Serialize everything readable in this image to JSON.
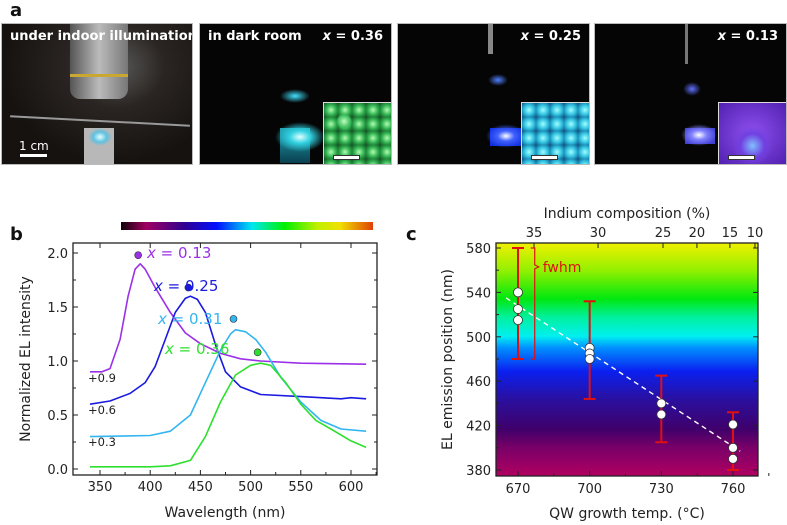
{
  "panel_a": {
    "letter": "a",
    "photos": [
      {
        "label": "under indoor illumination",
        "scale_label": "1 cm"
      },
      {
        "label": "in dark room",
        "composition": "x = 0.36",
        "inset_color": "#30c060"
      },
      {
        "composition": "x = 0.25",
        "inset_color": "#20b8e0"
      },
      {
        "composition": "x = 0.13",
        "inset_color": "#7a30e0"
      }
    ]
  },
  "chart_data": [
    {
      "panel": "b",
      "type": "line",
      "xlabel": "Wavelength (nm)",
      "ylabel": "Normalized EL intensity",
      "xlim": [
        323,
        626
      ],
      "ylim": [
        -0.03,
        2.1
      ],
      "xticks": [
        350,
        400,
        450,
        500,
        550,
        600
      ],
      "yticks": [
        "0.0",
        "0.5",
        "1.0",
        "1.5",
        "2.0"
      ],
      "colorbar": "spectrum",
      "offset_labels": [
        "+0.9",
        "+0.6",
        "+0.3"
      ],
      "series": [
        {
          "name": "x = 0.13",
          "color": "#9b30e8",
          "peak_marker": [
            388,
            1.98
          ],
          "x": [
            340,
            352,
            360,
            370,
            378,
            385,
            390,
            395,
            405,
            420,
            435,
            450,
            470,
            490,
            510,
            550,
            615
          ],
          "y": [
            0.9,
            0.9,
            0.93,
            1.2,
            1.6,
            1.85,
            1.9,
            1.85,
            1.68,
            1.45,
            1.26,
            1.16,
            1.07,
            1.02,
            1.0,
            0.98,
            0.97
          ]
        },
        {
          "name": "x = 0.25",
          "color": "#1a1ae0",
          "peak_marker": [
            438,
            1.68
          ],
          "x": [
            340,
            360,
            380,
            395,
            405,
            415,
            425,
            435,
            440,
            447,
            455,
            465,
            475,
            490,
            510,
            550,
            590,
            600,
            615
          ],
          "y": [
            0.6,
            0.63,
            0.7,
            0.8,
            0.95,
            1.2,
            1.45,
            1.58,
            1.6,
            1.57,
            1.45,
            1.15,
            0.9,
            0.76,
            0.69,
            0.67,
            0.65,
            0.66,
            0.65
          ]
        },
        {
          "name": "x = 0.31",
          "color": "#33b5f0",
          "peak_marker": [
            483,
            1.39
          ],
          "x": [
            340,
            400,
            420,
            440,
            455,
            470,
            480,
            485,
            495,
            505,
            515,
            530,
            550,
            570,
            590,
            615
          ],
          "y": [
            0.3,
            0.31,
            0.35,
            0.5,
            0.8,
            1.1,
            1.25,
            1.29,
            1.27,
            1.2,
            1.08,
            0.85,
            0.62,
            0.45,
            0.37,
            0.35
          ]
        },
        {
          "name": "x = 0.36",
          "color": "#2ee02e",
          "peak_marker": [
            507,
            1.08
          ],
          "x": [
            340,
            400,
            420,
            440,
            455,
            470,
            485,
            500,
            510,
            520,
            535,
            550,
            565,
            580,
            600,
            615
          ],
          "y": [
            0.02,
            0.02,
            0.03,
            0.08,
            0.3,
            0.62,
            0.87,
            0.96,
            0.98,
            0.96,
            0.8,
            0.6,
            0.45,
            0.37,
            0.26,
            0.2
          ]
        }
      ]
    },
    {
      "panel": "c",
      "type": "scatter",
      "xlabel": "QW growth temp. (°C)",
      "ylabel": "EL emission position (nm)",
      "top_xlabel": "Indium composition (%)",
      "top_xticks": [
        "35",
        "30",
        "25",
        "20",
        "15",
        "10"
      ],
      "xlim": [
        661,
        771
      ],
      "ylim": [
        375,
        585
      ],
      "xticks": [
        670,
        700,
        730,
        760
      ],
      "yticks": [
        380,
        420,
        460,
        500,
        540,
        580
      ],
      "background": "spectrum",
      "points": [
        {
          "x": 670,
          "y": 540
        },
        {
          "x": 670,
          "y": 525
        },
        {
          "x": 670,
          "y": 515
        },
        {
          "x": 700,
          "y": 490
        },
        {
          "x": 700,
          "y": 485
        },
        {
          "x": 700,
          "y": 480
        },
        {
          "x": 730,
          "y": 440
        },
        {
          "x": 730,
          "y": 430
        },
        {
          "x": 760,
          "y": 421
        },
        {
          "x": 760,
          "y": 400
        },
        {
          "x": 760,
          "y": 390
        }
      ],
      "error_bars": [
        {
          "x": 670,
          "low": 480,
          "high": 580
        },
        {
          "x": 700,
          "low": 444,
          "high": 532
        },
        {
          "x": 730,
          "low": 405,
          "high": 465
        },
        {
          "x": 760,
          "low": 380,
          "high": 432
        }
      ],
      "fit_line": [
        [
          665,
          535
        ],
        [
          763,
          397
        ]
      ],
      "annotation": "fwhm",
      "error_color": "#e01010"
    }
  ],
  "panel_b": {
    "letter": "b"
  },
  "panel_c": {
    "letter": "c"
  }
}
